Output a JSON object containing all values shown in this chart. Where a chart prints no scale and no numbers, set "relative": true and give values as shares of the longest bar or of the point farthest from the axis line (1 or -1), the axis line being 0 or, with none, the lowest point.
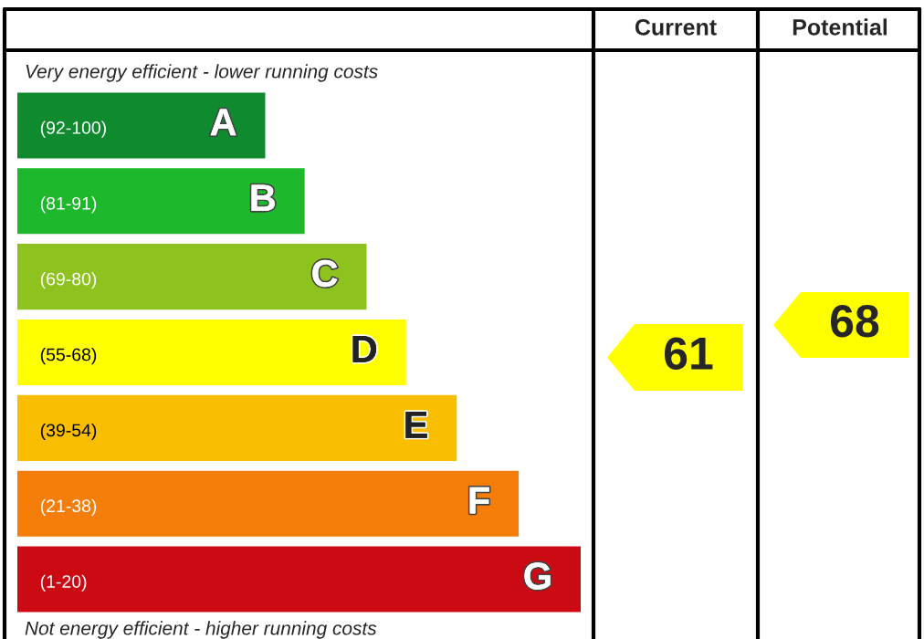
{
  "chart_data": {
    "type": "bar",
    "orientation": "horizontal",
    "relative": true,
    "categories": [
      "(92-100)",
      "(81-91)",
      "(69-80)",
      "(55-68)",
      "(39-54)",
      "(21-38)",
      "(1-20)"
    ],
    "values": [
      0.44,
      0.51,
      0.62,
      0.69,
      0.78,
      0.89,
      1.0
    ],
    "colors": [
      "#0f8a2e",
      "#1db82c",
      "#8dc21f",
      "#ffff00",
      "#f9be00",
      "#f57d0a",
      "#cc0a14"
    ],
    "annotations": [
      {
        "text": "A",
        "y": "(92-100)"
      },
      {
        "text": "B",
        "y": "(81-91)"
      },
      {
        "text": "C",
        "y": "(69-80)"
      },
      {
        "text": "D",
        "y": "(55-68)"
      },
      {
        "text": "E",
        "y": "(39-54)"
      },
      {
        "text": "F",
        "y": "(21-38)"
      },
      {
        "text": "G",
        "y": "(1-20)"
      },
      "Very energy efficient - lower running costs",
      "Not energy efficient - higher running costs",
      "Current",
      "Potential",
      "61",
      "68"
    ]
  }
}
